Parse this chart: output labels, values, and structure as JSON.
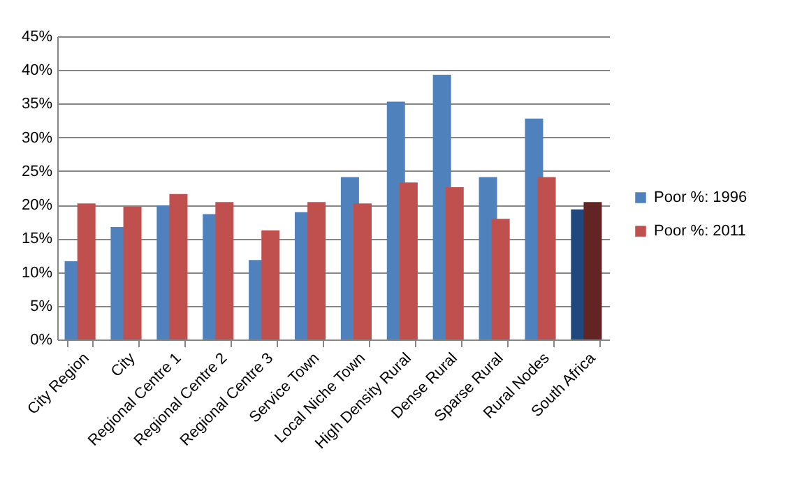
{
  "chart_data": {
    "type": "bar",
    "categories": [
      "City Region",
      "City",
      "Regional Centre 1",
      "Regional Centre 2",
      "Regional Centre 3",
      "Service Town",
      "Local Niche Town",
      "High Density Rural",
      "Dense Rural",
      "Sparse Rural",
      "Rural Nodes",
      "South Africa"
    ],
    "series": [
      {
        "name": "Poor %: 1996",
        "color": "#4f81bd",
        "colors": [
          "#4f81bd",
          "#4f81bd",
          "#4f81bd",
          "#4f81bd",
          "#4f81bd",
          "#4f81bd",
          "#4f81bd",
          "#4f81bd",
          "#4f81bd",
          "#4f81bd",
          "#4f81bd",
          "#1f497d"
        ],
        "values": [
          11.6,
          16.7,
          19.9,
          18.6,
          11.8,
          18.9,
          24.1,
          35.3,
          39.3,
          24.1,
          32.8,
          19.3
        ]
      },
      {
        "name": "Poor %: 2011",
        "color": "#c0504d",
        "colors": [
          "#c0504d",
          "#c0504d",
          "#c0504d",
          "#c0504d",
          "#c0504d",
          "#c0504d",
          "#c0504d",
          "#c0504d",
          "#c0504d",
          "#c0504d",
          "#c0504d",
          "#632523"
        ],
        "values": [
          20.2,
          19.7,
          21.6,
          20.4,
          16.2,
          20.4,
          20.2,
          23.3,
          22.6,
          17.9,
          24.1,
          20.4
        ]
      }
    ],
    "ylim": [
      0,
      45
    ],
    "yticks": [
      {
        "value": 0,
        "label": "0%"
      },
      {
        "value": 5,
        "label": "5%"
      },
      {
        "value": 10,
        "label": "10%"
      },
      {
        "value": 15,
        "label": "15%"
      },
      {
        "value": 20,
        "label": "20%"
      },
      {
        "value": 25,
        "label": "25%"
      },
      {
        "value": 30,
        "label": "30%"
      },
      {
        "value": 35,
        "label": "35%"
      },
      {
        "value": 40,
        "label": "40%"
      },
      {
        "value": 45,
        "label": "45%"
      }
    ],
    "grid": "y",
    "legend": "right"
  }
}
